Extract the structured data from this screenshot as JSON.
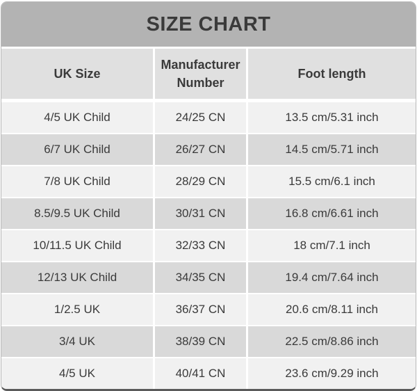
{
  "title": "SIZE CHART",
  "colors": {
    "title_bar_bg": "#b3b3b3",
    "header_bg": "#e0e0e0",
    "row_light": "#f1f1f1",
    "row_dark": "#d9d9d9",
    "divider": "#ffffff",
    "text": "#3a3a3a",
    "bottom_border": "#5a5a5a"
  },
  "chart_data": {
    "type": "table",
    "title": "SIZE CHART",
    "columns": [
      "UK Size",
      "Manufacturer Number",
      "Foot length"
    ],
    "rows": [
      [
        "4/5 UK Child",
        "24/25 CN",
        "13.5 cm/5.31 inch"
      ],
      [
        "6/7 UK Child",
        "26/27 CN",
        "14.5 cm/5.71 inch"
      ],
      [
        "7/8 UK Child",
        "28/29 CN",
        "15.5 cm/6.1 inch"
      ],
      [
        "8.5/9.5 UK Child",
        "30/31 CN",
        "16.8 cm/6.61 inch"
      ],
      [
        "10/11.5 UK Child",
        "32/33 CN",
        "18 cm/7.1 inch"
      ],
      [
        "12/13 UK Child",
        "34/35 CN",
        "19.4 cm/7.64 inch"
      ],
      [
        "1/2.5 UK",
        "36/37 CN",
        "20.6 cm/8.11 inch"
      ],
      [
        "3/4 UK",
        "38/39 CN",
        "22.5 cm/8.86 inch"
      ],
      [
        "4/5 UK",
        "40/41 CN",
        "23.6 cm/9.29 inch"
      ]
    ],
    "layout": {
      "legend": "none",
      "grid": "white separators between rows and columns",
      "row_striping": "alternating light/dark gray starting light"
    }
  }
}
